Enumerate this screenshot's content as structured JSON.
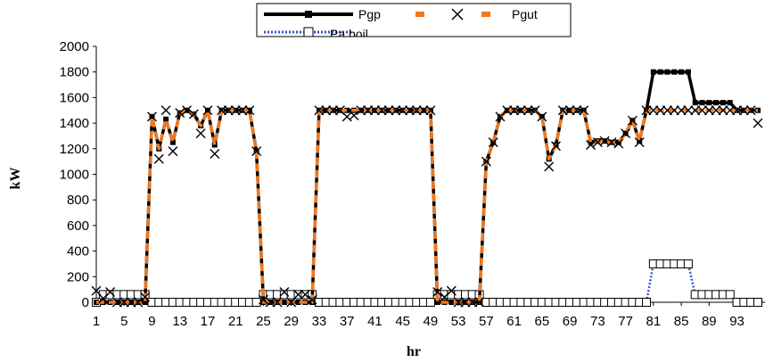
{
  "chart_data": {
    "type": "line",
    "title": "",
    "xlabel": "hr",
    "ylabel": "kW",
    "ylim": [
      0,
      2000
    ],
    "yticks": [
      0,
      200,
      400,
      600,
      800,
      1000,
      1200,
      1400,
      1600,
      1800,
      2000
    ],
    "xlim": [
      1,
      96
    ],
    "xticks": [
      1,
      5,
      9,
      13,
      17,
      21,
      25,
      29,
      33,
      37,
      41,
      45,
      49,
      53,
      57,
      61,
      65,
      69,
      73,
      77,
      81,
      85,
      89,
      93
    ],
    "grid": false,
    "legend_position": "top",
    "x": [
      1,
      2,
      3,
      4,
      5,
      6,
      7,
      8,
      9,
      10,
      11,
      12,
      13,
      14,
      15,
      16,
      17,
      18,
      19,
      20,
      21,
      22,
      23,
      24,
      25,
      26,
      27,
      28,
      29,
      30,
      31,
      32,
      33,
      34,
      35,
      36,
      37,
      38,
      39,
      40,
      41,
      42,
      43,
      44,
      45,
      46,
      47,
      48,
      49,
      50,
      51,
      52,
      53,
      54,
      55,
      56,
      57,
      58,
      59,
      60,
      61,
      62,
      63,
      64,
      65,
      66,
      67,
      68,
      69,
      70,
      71,
      72,
      73,
      74,
      75,
      76,
      77,
      78,
      79,
      80,
      81,
      82,
      83,
      84,
      85,
      86,
      87,
      88,
      89,
      90,
      91,
      92,
      93,
      94,
      95,
      96
    ],
    "series": [
      {
        "name": "Pgp",
        "color": "#000000",
        "marker": "square-small",
        "values": [
          0,
          0,
          0,
          0,
          0,
          0,
          0,
          0,
          1450,
          1200,
          1430,
          1250,
          1480,
          1500,
          1470,
          1380,
          1500,
          1230,
          1500,
          1500,
          1500,
          1500,
          1500,
          1180,
          0,
          0,
          0,
          0,
          0,
          0,
          0,
          0,
          1500,
          1500,
          1500,
          1500,
          1500,
          1500,
          1500,
          1500,
          1500,
          1500,
          1500,
          1500,
          1500,
          1500,
          1500,
          1500,
          1500,
          0,
          0,
          0,
          0,
          0,
          0,
          0,
          1100,
          1250,
          1450,
          1500,
          1500,
          1500,
          1500,
          1500,
          1450,
          1120,
          1230,
          1500,
          1500,
          1500,
          1500,
          1250,
          1260,
          1260,
          1250,
          1250,
          1320,
          1420,
          1260,
          1500,
          1800,
          1800,
          1800,
          1800,
          1800,
          1800,
          1560,
          1560,
          1560,
          1560,
          1560,
          1560,
          1500,
          1500,
          1500,
          1500
        ]
      },
      {
        "name": "",
        "color": "#000000",
        "marker": "x",
        "values": [
          90,
          30,
          80,
          0,
          0,
          0,
          0,
          40,
          1450,
          1120,
          1500,
          1180,
          1480,
          1500,
          1470,
          1320,
          1500,
          1160,
          1500,
          1500,
          1500,
          1500,
          1500,
          1180,
          20,
          0,
          0,
          80,
          0,
          60,
          60,
          20,
          1500,
          1500,
          1500,
          1500,
          1450,
          1460,
          1500,
          1500,
          1500,
          1500,
          1500,
          1500,
          1500,
          1500,
          1500,
          1500,
          1500,
          80,
          40,
          90,
          0,
          0,
          0,
          0,
          1100,
          1250,
          1450,
          1500,
          1500,
          1500,
          1500,
          1500,
          1450,
          1060,
          1220,
          1500,
          1500,
          1500,
          1500,
          1230,
          1250,
          1260,
          1250,
          1240,
          1320,
          1420,
          1250,
          1500,
          1500,
          1500,
          1500,
          1500,
          1500,
          1500,
          1500,
          1500,
          1500,
          1500,
          1500,
          1500,
          1500,
          1500,
          1500,
          1400
        ]
      },
      {
        "name": "Pgut",
        "color": "#f07820",
        "marker": "none",
        "values": [
          0,
          0,
          0,
          0,
          0,
          0,
          0,
          0,
          1450,
          1200,
          1430,
          1250,
          1480,
          1500,
          1470,
          1380,
          1500,
          1230,
          1500,
          1500,
          1500,
          1500,
          1500,
          1180,
          0,
          0,
          0,
          0,
          0,
          0,
          0,
          0,
          1500,
          1500,
          1500,
          1500,
          1500,
          1500,
          1500,
          1500,
          1500,
          1500,
          1500,
          1500,
          1500,
          1500,
          1500,
          1500,
          1500,
          0,
          0,
          0,
          0,
          0,
          0,
          0,
          1100,
          1250,
          1450,
          1500,
          1500,
          1500,
          1500,
          1500,
          1450,
          1120,
          1230,
          1500,
          1500,
          1500,
          1500,
          1250,
          1260,
          1260,
          1250,
          1250,
          1320,
          1420,
          1260,
          1500,
          1500,
          1500,
          1500,
          1500,
          1500,
          1500,
          1500,
          1500,
          1500,
          1500,
          1500,
          1500,
          1500,
          1500,
          1500,
          1500
        ]
      },
      {
        "name": "Pa,boil",
        "color": "#3355cc",
        "marker": "square-open",
        "values": [
          0,
          60,
          60,
          60,
          60,
          60,
          60,
          60,
          0,
          0,
          0,
          0,
          0,
          0,
          0,
          0,
          0,
          0,
          0,
          0,
          0,
          0,
          0,
          0,
          60,
          60,
          60,
          60,
          60,
          60,
          60,
          60,
          0,
          0,
          0,
          0,
          0,
          0,
          0,
          0,
          0,
          0,
          0,
          0,
          0,
          0,
          0,
          0,
          0,
          60,
          60,
          60,
          60,
          60,
          60,
          60,
          0,
          0,
          0,
          0,
          0,
          0,
          0,
          0,
          0,
          0,
          0,
          0,
          0,
          0,
          0,
          0,
          0,
          0,
          0,
          0,
          0,
          0,
          0,
          0,
          300,
          300,
          300,
          300,
          300,
          300,
          60,
          60,
          60,
          60,
          60,
          60,
          0,
          0,
          0,
          0
        ]
      }
    ]
  }
}
